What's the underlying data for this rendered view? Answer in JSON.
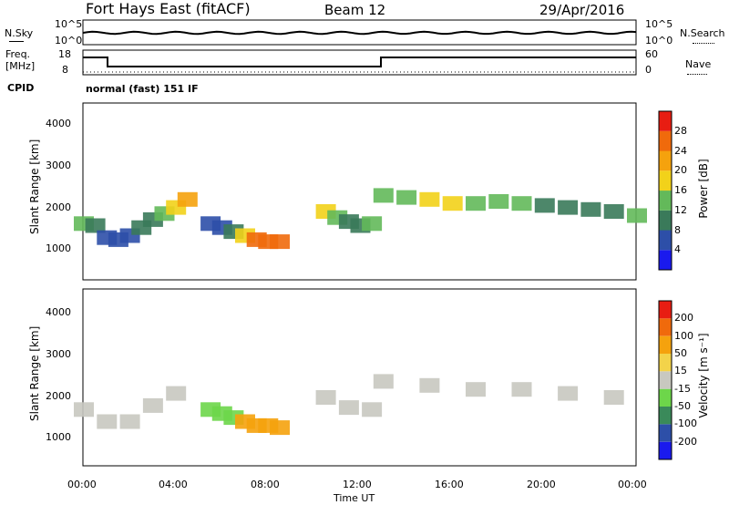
{
  "header": {
    "radar": "Fort Hays East (fitACF)",
    "beam": "Beam 12",
    "date": "29/Apr/2016"
  },
  "summary": {
    "left_labels": [
      "N.Sky",
      "Freq.",
      "[MHz]",
      "CPID"
    ],
    "right_labels": [
      "N.Search",
      "Nave"
    ],
    "nsky_ticks": [
      "10^5",
      "10^0"
    ],
    "nsearch_ticks": [
      "10^5",
      "10^0"
    ],
    "freq_ticks": [
      "18",
      "8"
    ],
    "nave_ticks": [
      "60",
      "0"
    ],
    "cpid_text": "normal (fast) 151 IF"
  },
  "colors": {
    "power": [
      "#1a1aee",
      "#2d4fa8",
      "#3a7a5a",
      "#63b95a",
      "#f2d21a",
      "#f5a20d",
      "#f06a0c",
      "#e81d12"
    ],
    "velocity": [
      "#e81d12",
      "#f06a0c",
      "#f5a20d",
      "#f3d34a",
      "#c8c8c0",
      "#6dd64a",
      "#3a8a5a",
      "#2d4fa8",
      "#1a1aee"
    ]
  },
  "chart_data": [
    {
      "type": "heatmap",
      "name": "power",
      "ylabel": "Slant Range [km]",
      "yticks": [
        1000,
        2000,
        3000,
        4000
      ],
      "ylim": [
        200,
        4600
      ],
      "xticks": [
        "00:00",
        "04:00",
        "08:00",
        "12:00",
        "16:00",
        "20:00",
        "00:00"
      ],
      "colorbar_label": "Power [dB]",
      "colorbar_ticks": [
        "4",
        "8",
        "12",
        "16",
        "20",
        "24",
        "28"
      ],
      "cells": [
        [
          0,
          1600,
          3
        ],
        [
          0.5,
          1550,
          2
        ],
        [
          1.0,
          1250,
          1
        ],
        [
          1.5,
          1200,
          1
        ],
        [
          2.0,
          1300,
          1
        ],
        [
          2.5,
          1500,
          2
        ],
        [
          3.0,
          1700,
          2
        ],
        [
          3.5,
          1850,
          3
        ],
        [
          4.0,
          2000,
          4
        ],
        [
          4.5,
          2200,
          5
        ],
        [
          5.5,
          1600,
          1
        ],
        [
          6.0,
          1500,
          1
        ],
        [
          6.5,
          1400,
          2
        ],
        [
          7.0,
          1300,
          4
        ],
        [
          7.5,
          1200,
          6
        ],
        [
          8.0,
          1150,
          6
        ],
        [
          8.5,
          1150,
          6
        ],
        [
          10.5,
          1900,
          4
        ],
        [
          11.0,
          1750,
          3
        ],
        [
          11.5,
          1650,
          2
        ],
        [
          12.0,
          1550,
          2
        ],
        [
          12.5,
          1600,
          3
        ],
        [
          13.0,
          2300,
          3
        ],
        [
          14.0,
          2250,
          3
        ],
        [
          15.0,
          2200,
          4
        ],
        [
          16.0,
          2100,
          4
        ],
        [
          17.0,
          2100,
          3
        ],
        [
          18.0,
          2150,
          3
        ],
        [
          19.0,
          2100,
          3
        ],
        [
          20.0,
          2050,
          2
        ],
        [
          21.0,
          2000,
          2
        ],
        [
          22.0,
          1950,
          2
        ],
        [
          23.0,
          1900,
          2
        ],
        [
          24.0,
          1800,
          3
        ]
      ]
    },
    {
      "type": "heatmap",
      "name": "velocity",
      "ylabel": "Slant Range [km]",
      "yticks": [
        1000,
        2000,
        3000,
        4000
      ],
      "ylim": [
        200,
        4600
      ],
      "xlabel": "Time UT",
      "xticks": [
        "00:00",
        "04:00",
        "08:00",
        "12:00",
        "16:00",
        "20:00",
        "00:00"
      ],
      "colorbar_label": "Velocity [m s⁻¹]",
      "colorbar_ticks": [
        "200",
        "100",
        "50",
        "15",
        "-15",
        "-50",
        "-100",
        "-200"
      ],
      "cells": [
        [
          0,
          1600,
          4
        ],
        [
          1.0,
          1300,
          4
        ],
        [
          2.0,
          1300,
          4
        ],
        [
          3.0,
          1700,
          4
        ],
        [
          4.0,
          2000,
          4
        ],
        [
          5.5,
          1600,
          5
        ],
        [
          6.0,
          1500,
          5
        ],
        [
          6.5,
          1400,
          5
        ],
        [
          7.0,
          1300,
          2
        ],
        [
          7.5,
          1200,
          2
        ],
        [
          8.0,
          1200,
          2
        ],
        [
          8.5,
          1150,
          2
        ],
        [
          10.5,
          1900,
          4
        ],
        [
          11.5,
          1650,
          4
        ],
        [
          12.5,
          1600,
          4
        ],
        [
          13.0,
          2300,
          4
        ],
        [
          15.0,
          2200,
          4
        ],
        [
          17.0,
          2100,
          4
        ],
        [
          19.0,
          2100,
          4
        ],
        [
          21.0,
          2000,
          4
        ],
        [
          23.0,
          1900,
          4
        ]
      ]
    }
  ]
}
